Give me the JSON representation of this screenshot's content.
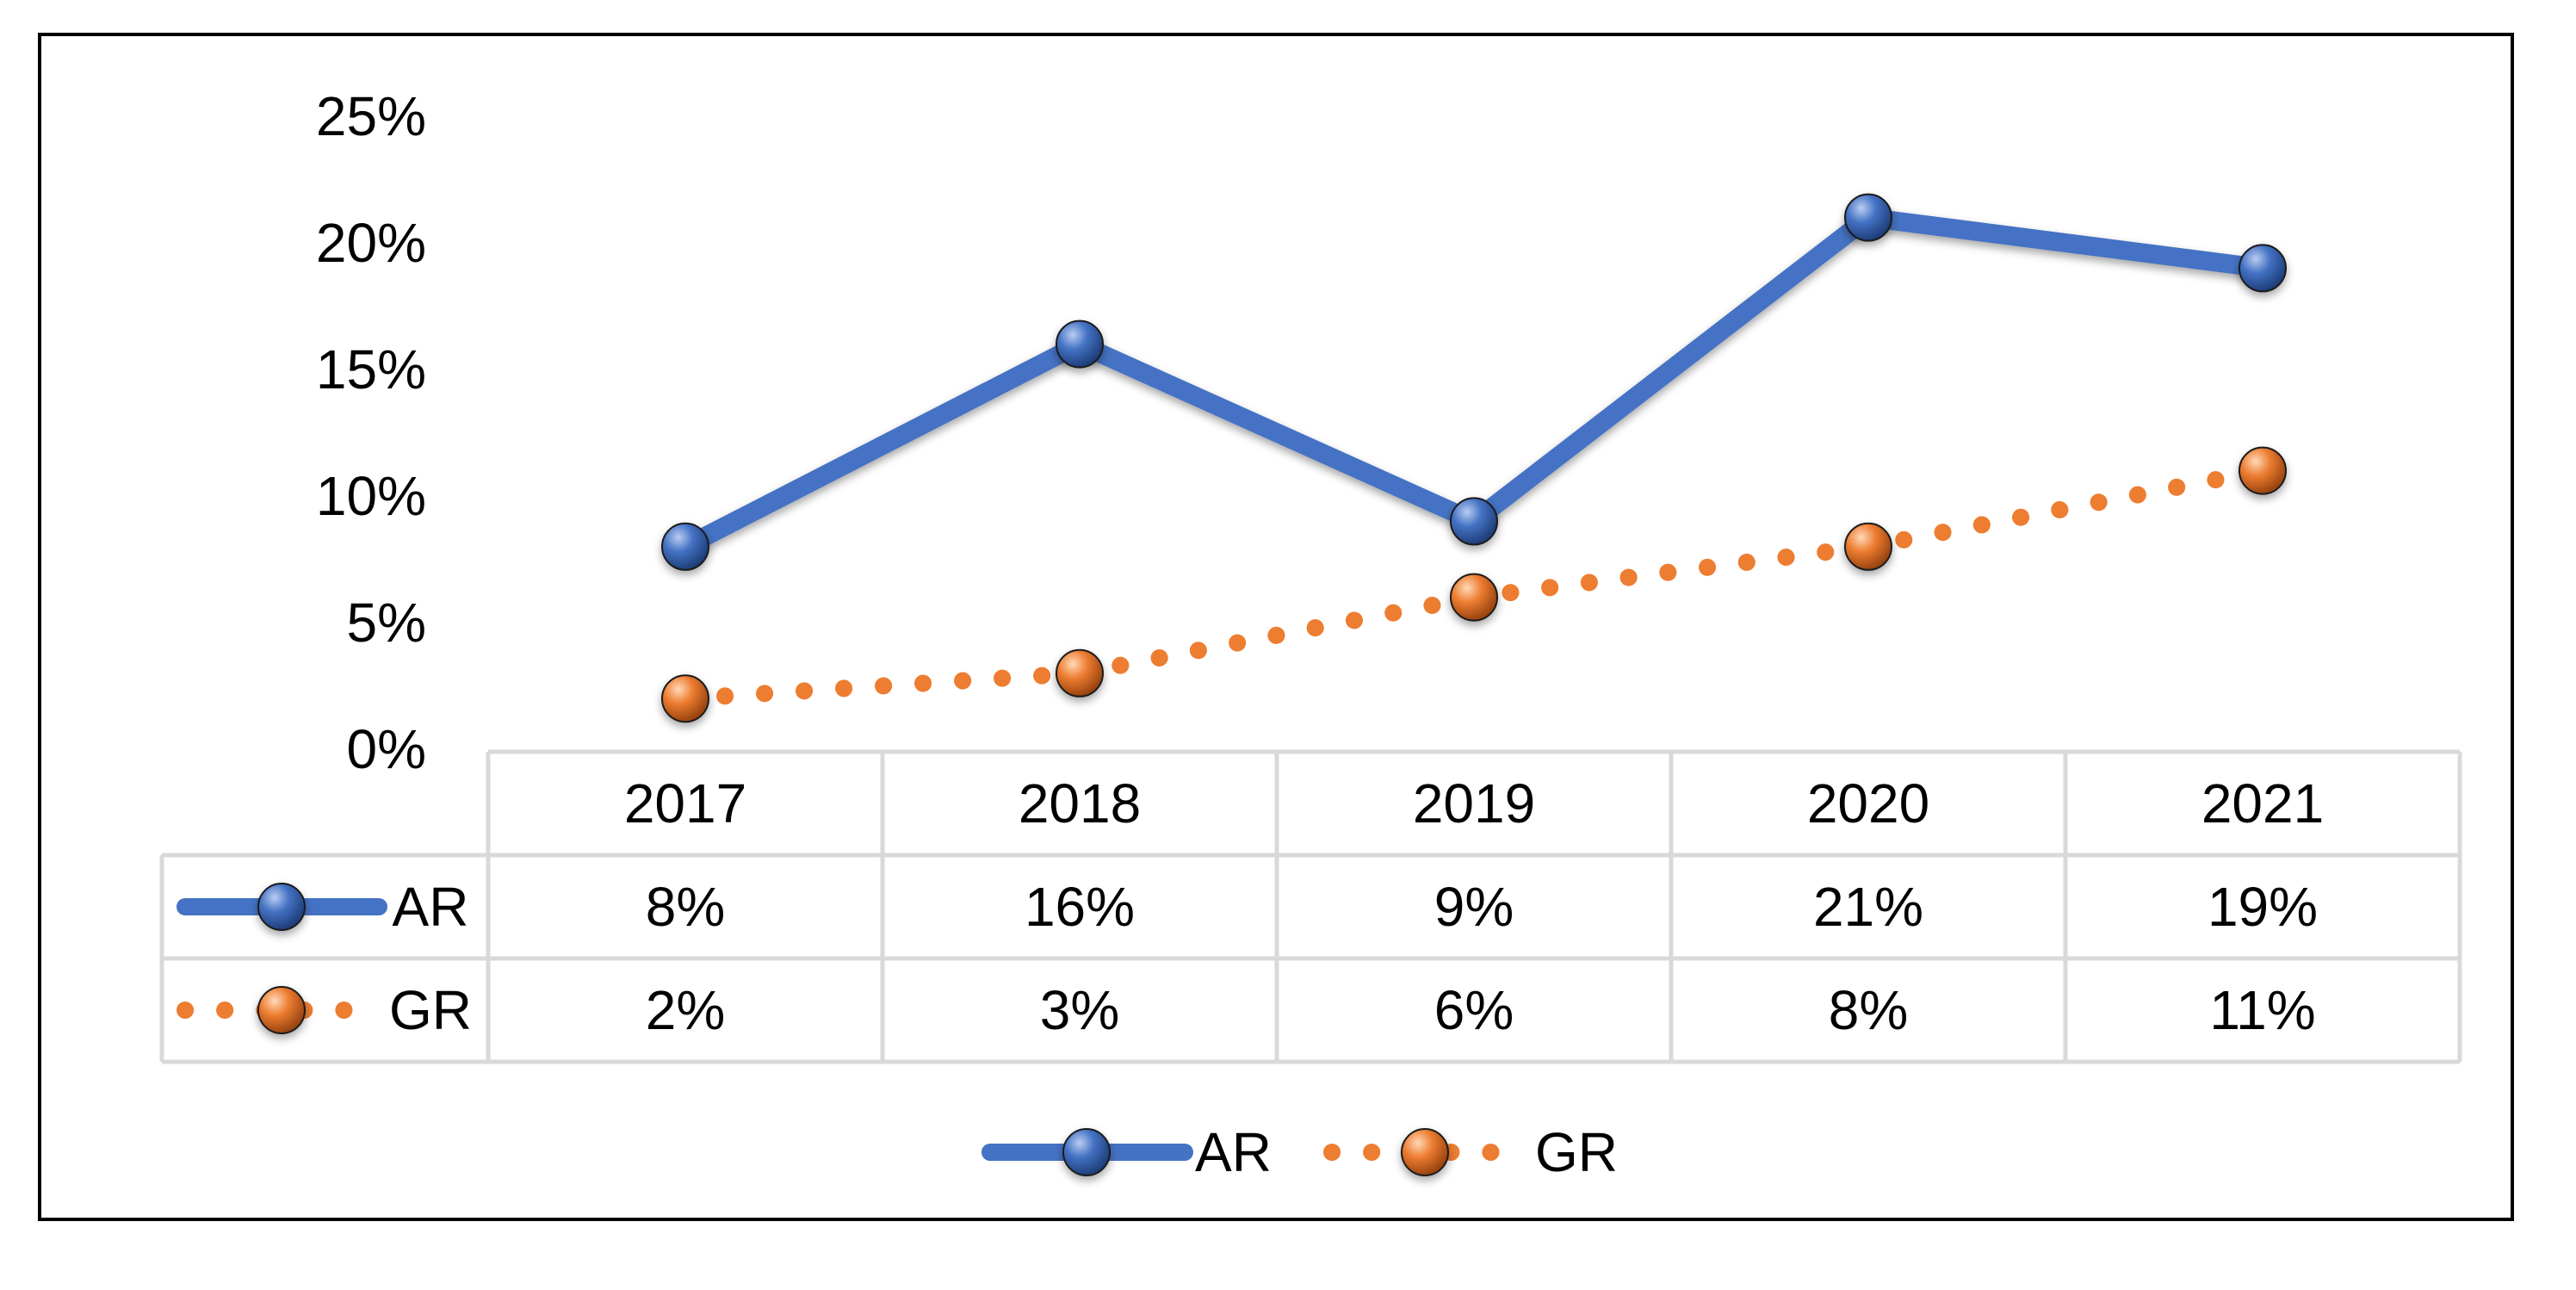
{
  "chart_data": {
    "type": "line",
    "categories": [
      "2017",
      "2018",
      "2019",
      "2020",
      "2021"
    ],
    "series": [
      {
        "name": "AR",
        "values": [
          8,
          16,
          9,
          21,
          19
        ],
        "labels": [
          "8%",
          "16%",
          "9%",
          "21%",
          "19%"
        ],
        "color": "#4472C4",
        "style": "solid"
      },
      {
        "name": "GR",
        "values": [
          2,
          3,
          6,
          8,
          11
        ],
        "labels": [
          "2%",
          "3%",
          "6%",
          "8%",
          "11%"
        ],
        "color": "#ED7D31",
        "style": "dotted"
      }
    ],
    "yticks": [
      "0%",
      "5%",
      "10%",
      "15%",
      "20%",
      "25%"
    ],
    "ylim": [
      0,
      25
    ],
    "legend_position": "bottom",
    "data_table": true,
    "title": "",
    "xlabel": "",
    "ylabel": ""
  }
}
